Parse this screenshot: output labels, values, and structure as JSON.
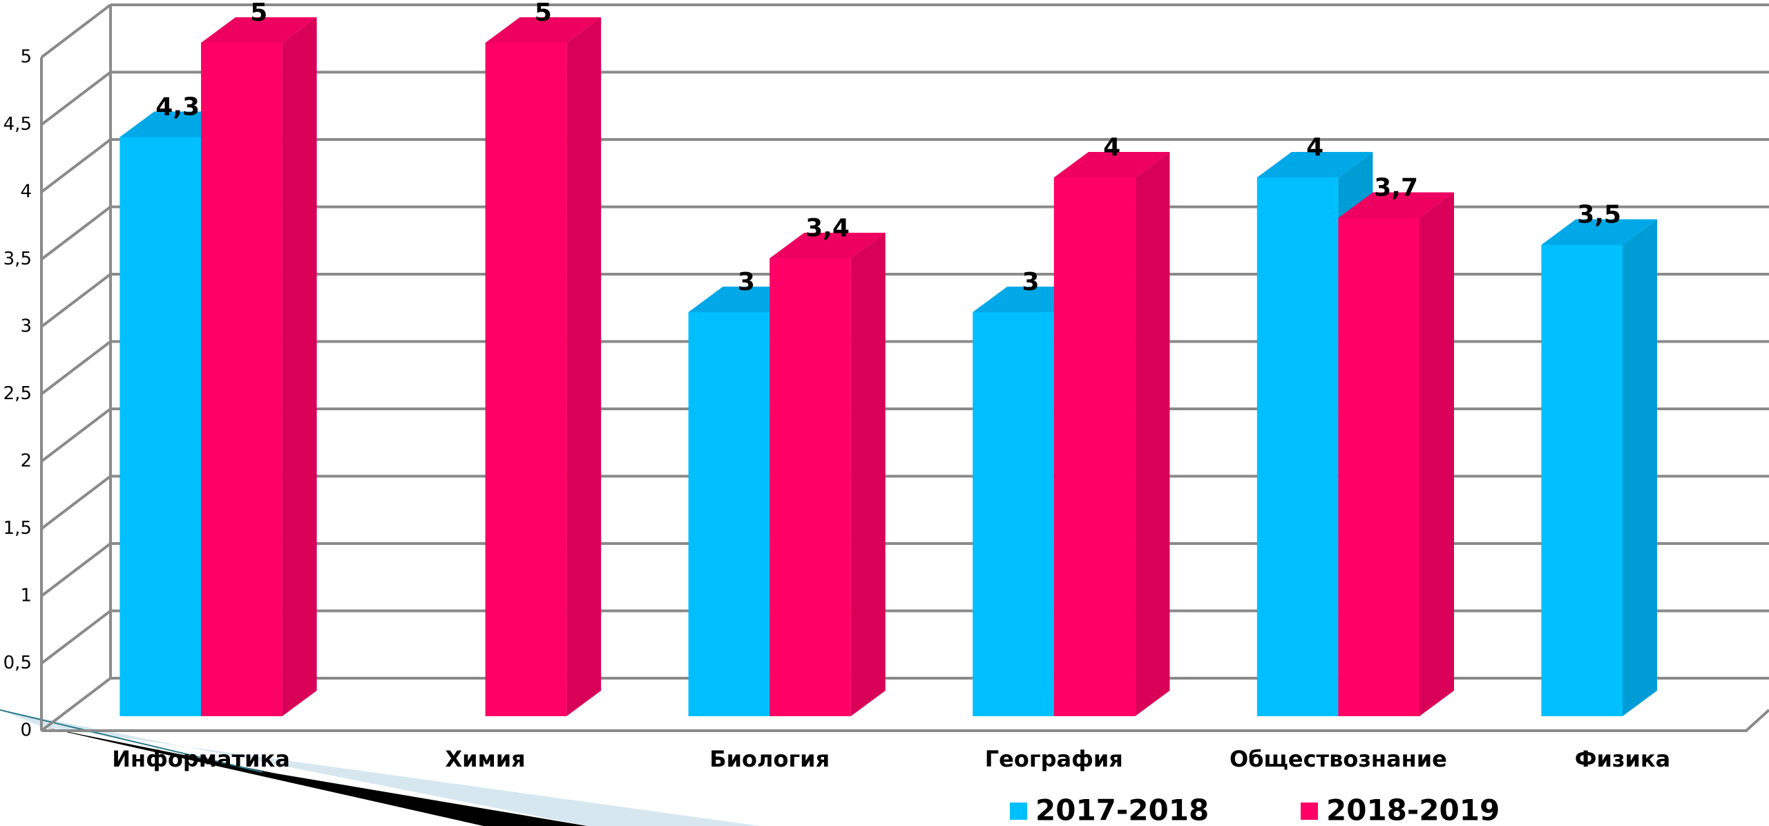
{
  "chart_data": {
    "type": "bar3d",
    "categories": [
      "Информатика",
      "Химия",
      "Биология",
      "География",
      "Обществознание",
      "Физика"
    ],
    "series": [
      {
        "name": "2017-2018",
        "color": "#00bfff",
        "values": [
          4.3,
          null,
          3,
          3,
          4,
          3.5
        ],
        "value_labels": [
          "4,3",
          null,
          "3",
          "3",
          "4",
          "3,5"
        ]
      },
      {
        "name": "2018-2019",
        "color": "#ff0066",
        "values": [
          5,
          5,
          3.4,
          4,
          3.7,
          null
        ],
        "value_labels": [
          "5",
          "5",
          "3,4",
          "4",
          "3,7",
          null
        ]
      }
    ],
    "ylim": [
      0,
      5
    ],
    "yticks": [
      0,
      {
        "value": 0.5,
        "label": "0,5"
      },
      1,
      {
        "value": 1.5,
        "label": "1,5"
      },
      2,
      {
        "value": 2.5,
        "label": "2,5"
      },
      3,
      {
        "value": 3.5,
        "label": "3,5"
      },
      4,
      {
        "value": 4.5,
        "label": "4,5"
      },
      5
    ],
    "grid": true
  }
}
